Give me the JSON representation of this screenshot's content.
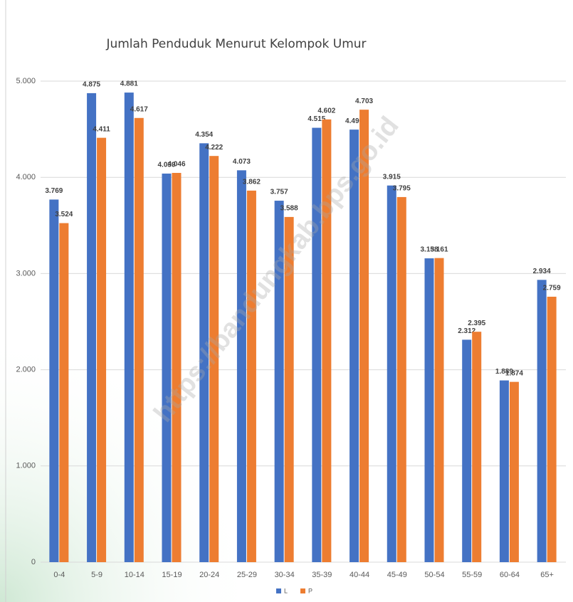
{
  "chart_data": {
    "type": "bar",
    "title": "Jumlah Penduduk Menurut Kelompok Umur",
    "categories": [
      "0-4",
      "5-9",
      "10-14",
      "15-19",
      "20-24",
      "25-29",
      "30-34",
      "35-39",
      "40-44",
      "45-49",
      "50-54",
      "55-59",
      "60-64",
      "65+"
    ],
    "series": [
      {
        "name": "L",
        "color": "#4472c4",
        "values": [
          3769,
          4875,
          4881,
          4039,
          4354,
          4073,
          3757,
          4515,
          4496,
          3915,
          3158,
          2312,
          1889,
          2934
        ],
        "value_labels": [
          "3.769",
          "4.875",
          "4.881",
          "4.039",
          "4.354",
          "4.073",
          "3.757",
          "4.515",
          "4.496",
          "3.915",
          "3.158",
          "2.312",
          "1.889",
          "2.934"
        ]
      },
      {
        "name": "P",
        "color": "#ed7d31",
        "values": [
          3524,
          4411,
          4617,
          4046,
          4222,
          3862,
          3588,
          4602,
          4703,
          3795,
          3161,
          2395,
          1874,
          2759
        ],
        "value_labels": [
          "3.524",
          "4.411",
          "4.617",
          "4.046",
          "4.222",
          "3.862",
          "3.588",
          "4.602",
          "4.703",
          "3.795",
          "3.161",
          "2.395",
          "1.874",
          "2.759"
        ]
      }
    ],
    "ylim": [
      0,
      5000
    ],
    "yticks": [
      0,
      {
        "value": 1000,
        "label": "1.000"
      },
      {
        "value": 2000,
        "label": "2.000"
      },
      {
        "value": 3000,
        "label": "3.000"
      },
      {
        "value": 4000,
        "label": "4.000"
      },
      {
        "value": 5000,
        "label": "5.000"
      }
    ],
    "grid": true,
    "legend": "bottom",
    "annotations": [
      "https://bandungkab.bps.go.id"
    ]
  }
}
